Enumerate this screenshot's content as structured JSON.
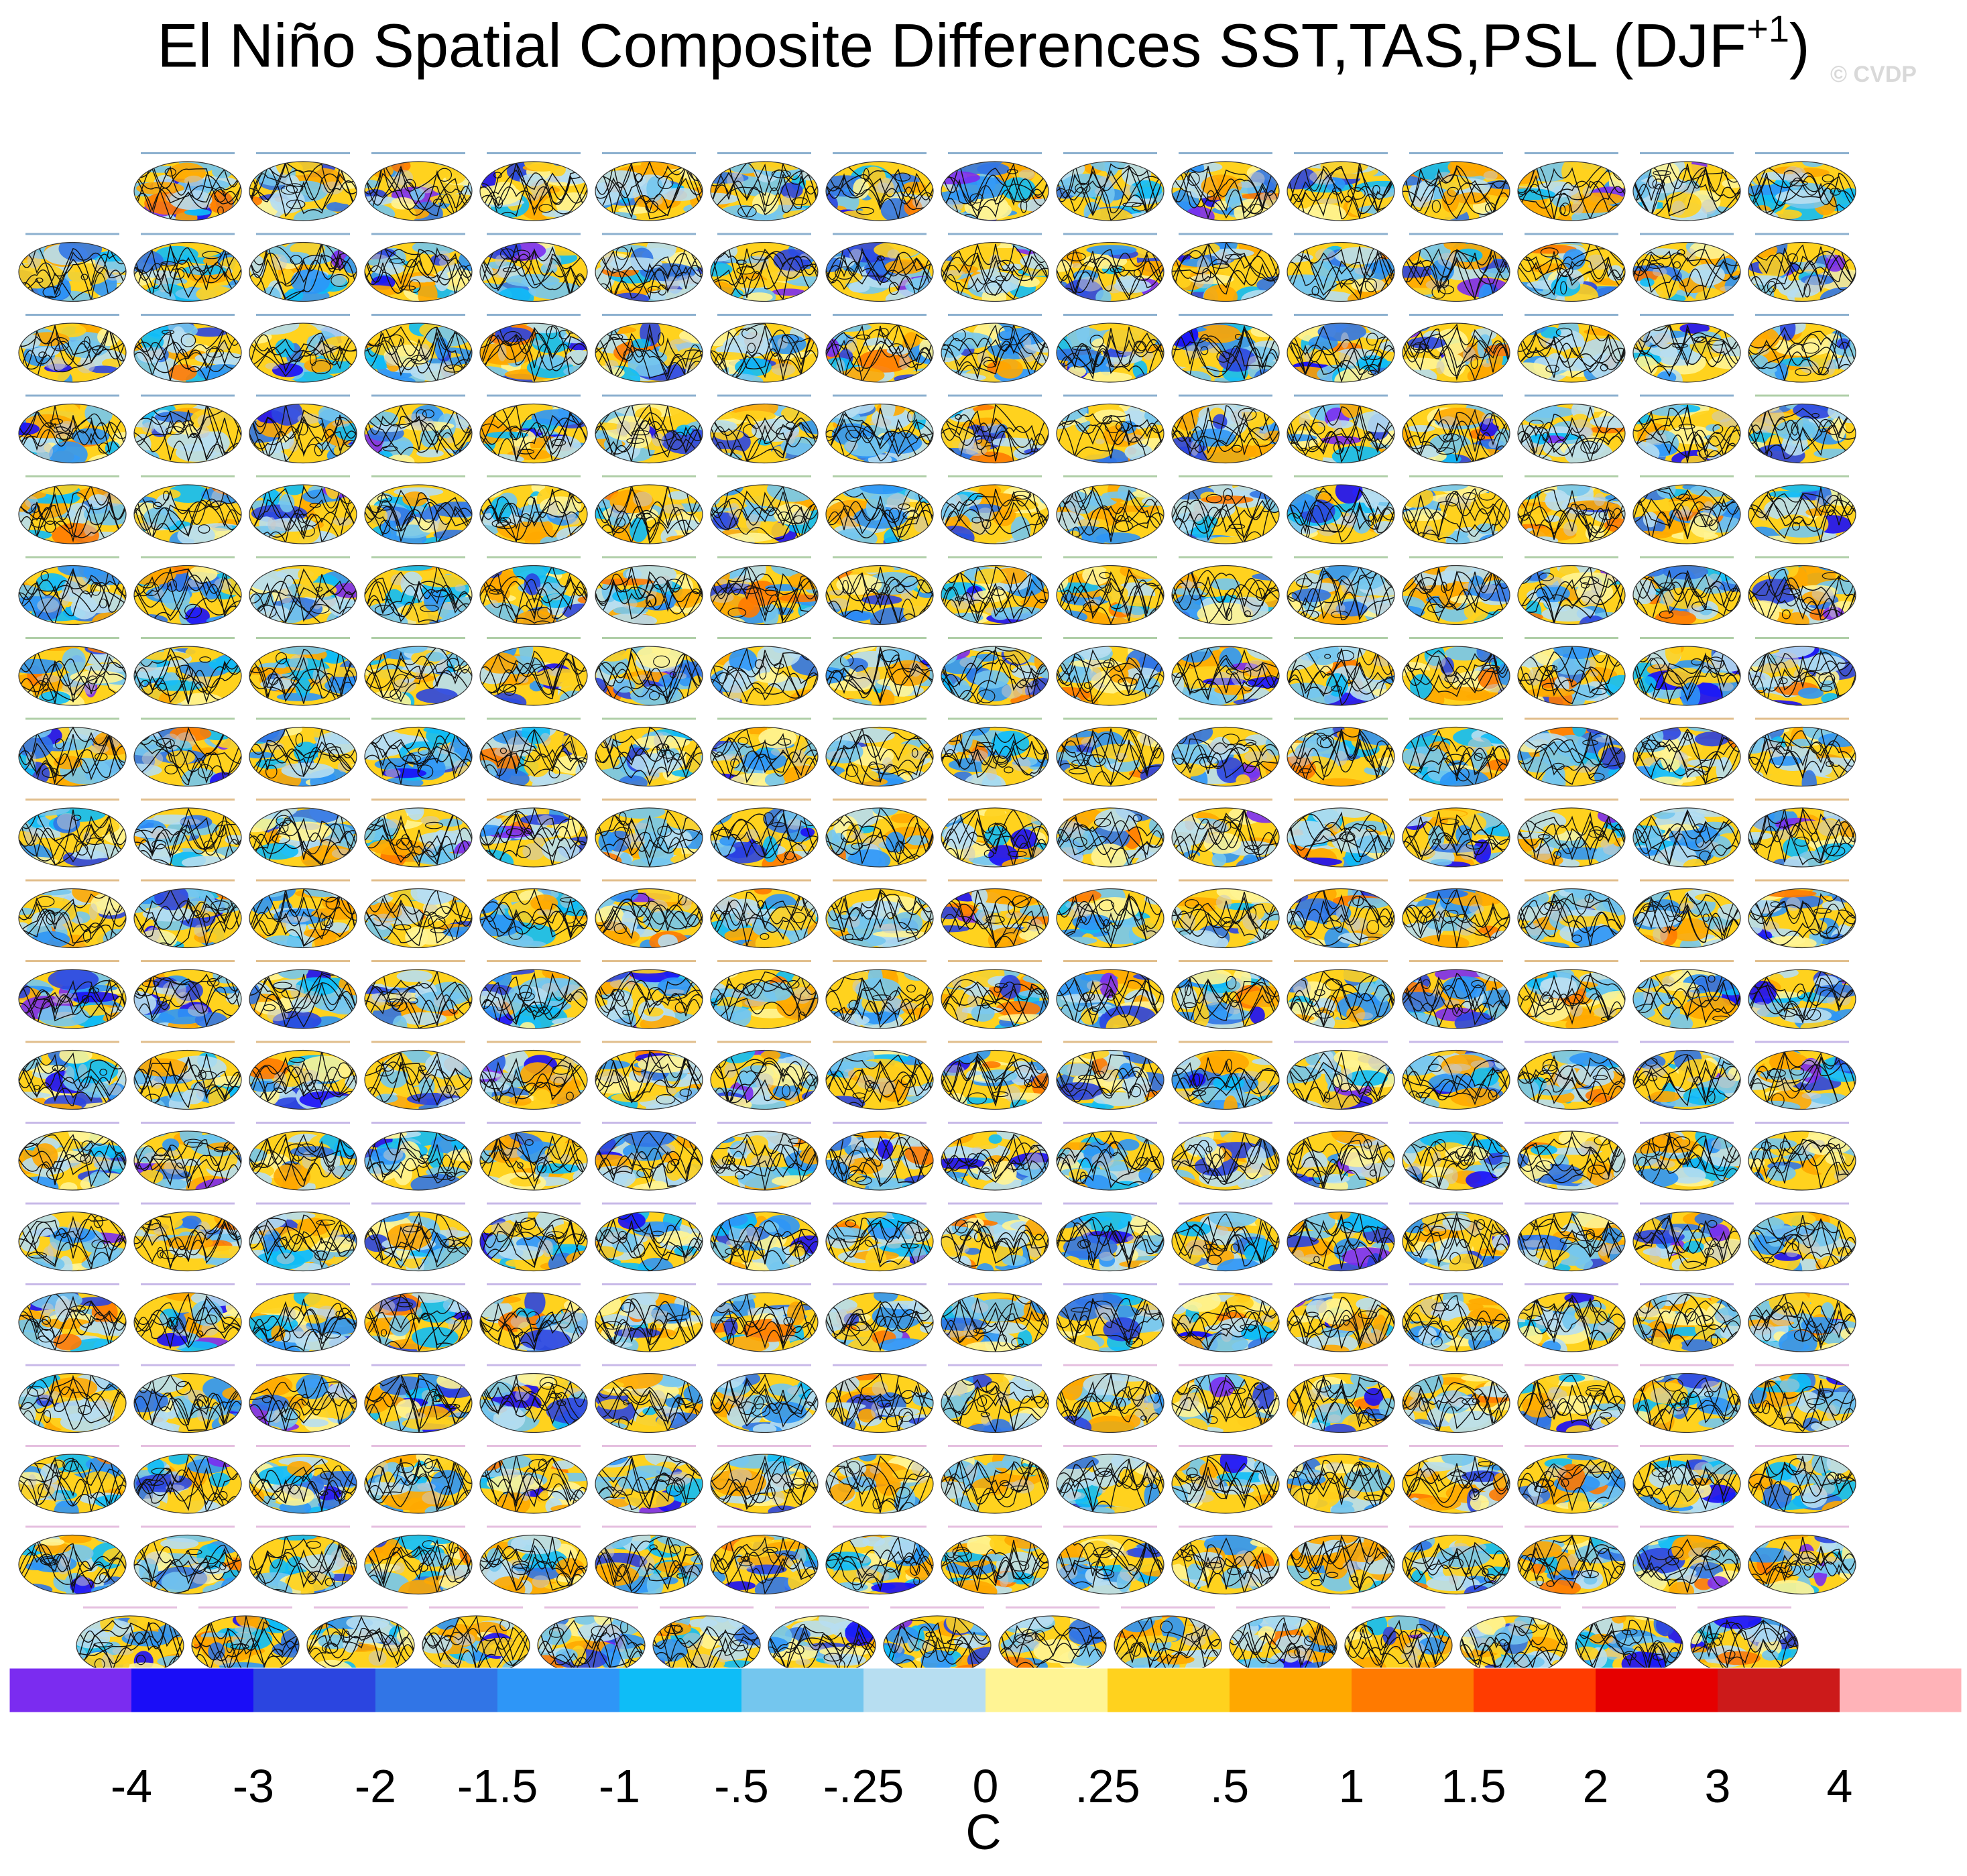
{
  "chart_data": {
    "type": "heatmap",
    "title": "El Niño Spatial Composite Differences SST,TAS,PSL (DJF",
    "title_superscript": "+1",
    "title_close": ")",
    "watermark": "© CVDP",
    "panel_grid": {
      "rows": 19,
      "cols": 16,
      "last_row_panels": 15,
      "first_row_offset": 1
    },
    "panel_titles": {
      "reference": "HadISST/GISTEMP/ERA20_1 - ERSST v5/BEST/ERA5",
      "groups": [
        "ACCESS-ESM1-5",
        "CanESM5",
        "CESM1",
        "CESM2",
        "CESM2-LE"
      ]
    },
    "colorbar": {
      "unit": "C",
      "levels": [
        "-4",
        "-3",
        "-2",
        "-1.5",
        "-1",
        "-.5",
        "-.25",
        "0",
        ".25",
        ".5",
        "1",
        "1.5",
        "2",
        "3",
        "4"
      ],
      "colors": [
        "#7B2CF0",
        "#1A0DF7",
        "#2B45E0",
        "#3175E6",
        "#2E96F7",
        "#0EBDF7",
        "#74C6EE",
        "#B7DEF1",
        "#FFF494",
        "#FFD21E",
        "#FFA800",
        "#FF7A00",
        "#FF3C00",
        "#E60000",
        "#CC1A1A",
        "#FFB3B8"
      ]
    }
  }
}
